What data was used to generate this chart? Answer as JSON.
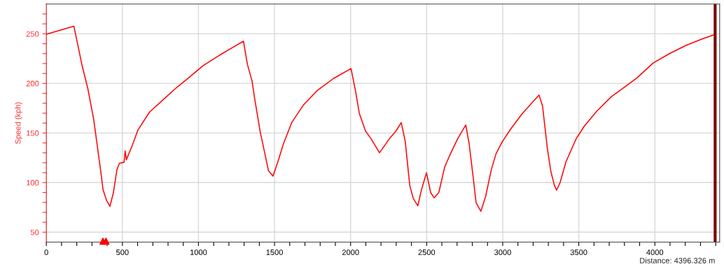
{
  "chart_data": {
    "type": "line",
    "ylabel": "Speed (kph)",
    "xlim": [
      0,
      4426
    ],
    "ylim": [
      40,
      280
    ],
    "xticks": [
      0,
      {
        "value": 100,
        "label": null
      },
      {
        "value": 200,
        "label": null
      },
      {
        "value": 300,
        "label": null
      },
      {
        "value": 400,
        "label": null
      },
      500,
      {
        "value": 600,
        "label": null
      },
      {
        "value": 700,
        "label": null
      },
      {
        "value": 800,
        "label": null
      },
      {
        "value": 900,
        "label": null
      },
      1000,
      {
        "value": 1100,
        "label": null
      },
      {
        "value": 1200,
        "label": null
      },
      {
        "value": 1300,
        "label": null
      },
      {
        "value": 1400,
        "label": null
      },
      1500,
      {
        "value": 1600,
        "label": null
      },
      {
        "value": 1700,
        "label": null
      },
      {
        "value": 1800,
        "label": null
      },
      {
        "value": 1900,
        "label": null
      },
      2000,
      {
        "value": 2100,
        "label": null
      },
      {
        "value": 2200,
        "label": null
      },
      {
        "value": 2300,
        "label": null
      },
      {
        "value": 2400,
        "label": null
      },
      2500,
      {
        "value": 2600,
        "label": null
      },
      {
        "value": 2700,
        "label": null
      },
      {
        "value": 2800,
        "label": null
      },
      {
        "value": 2900,
        "label": null
      },
      3000,
      {
        "value": 3100,
        "label": null
      },
      {
        "value": 3200,
        "label": null
      },
      {
        "value": 3300,
        "label": null
      },
      {
        "value": 3400,
        "label": null
      },
      3500,
      {
        "value": 3600,
        "label": null
      },
      {
        "value": 3700,
        "label": null
      },
      {
        "value": 3800,
        "label": null
      },
      {
        "value": 3900,
        "label": null
      },
      4000,
      {
        "value": 4100,
        "label": null
      },
      {
        "value": 4200,
        "label": null
      },
      {
        "value": 4300,
        "label": null
      },
      {
        "value": 4400,
        "label": null
      }
    ],
    "yticks": [
      50,
      {
        "value": 60,
        "label": null
      },
      {
        "value": 70,
        "label": null
      },
      {
        "value": 80,
        "label": null
      },
      {
        "value": 90,
        "label": null
      },
      100,
      {
        "value": 110,
        "label": null
      },
      {
        "value": 120,
        "label": null
      },
      {
        "value": 130,
        "label": null
      },
      {
        "value": 140,
        "label": null
      },
      150,
      {
        "value": 160,
        "label": null
      },
      {
        "value": 170,
        "label": null
      },
      {
        "value": 180,
        "label": null
      },
      {
        "value": 190,
        "label": null
      },
      200,
      {
        "value": 210,
        "label": null
      },
      {
        "value": 220,
        "label": null
      },
      {
        "value": 230,
        "label": null
      },
      {
        "value": 240,
        "label": null
      },
      250,
      {
        "value": 260,
        "label": null
      },
      {
        "value": 270,
        "label": null
      }
    ],
    "grid": true,
    "series": [
      {
        "color": "#ff0000",
        "x": [
          0,
          181,
          212,
          235,
          273,
          312,
          335,
          358,
          373,
          396,
          418,
          441,
          464,
          480,
          511,
          518,
          526,
          564,
          602,
          678,
          771,
          847,
          923,
          1031,
          1138,
          1229,
          1296,
          1322,
          1352,
          1368,
          1406,
          1445,
          1460,
          1490,
          1521,
          1559,
          1613,
          1689,
          1782,
          1888,
          2003,
          2034,
          2057,
          2098,
          2136,
          2190,
          2259,
          2298,
          2333,
          2359,
          2389,
          2412,
          2442,
          2465,
          2499,
          2526,
          2549,
          2580,
          2619,
          2649,
          2703,
          2757,
          2779,
          2803,
          2825,
          2856,
          2887,
          2926,
          2956,
          2995,
          3056,
          3131,
          3193,
          3239,
          3262,
          3293,
          3316,
          3339,
          3354,
          3377,
          3416,
          3484,
          3538,
          3622,
          3714,
          3798,
          3882,
          3989,
          4096,
          4204,
          4311,
          4396
        ],
        "values": [
          249.5,
          257.7,
          235,
          218,
          194.6,
          163,
          137,
          111,
          92.6,
          82,
          76,
          90,
          113,
          119.4,
          120.5,
          132,
          123,
          137,
          153,
          171,
          184,
          194.6,
          204,
          218,
          228.4,
          236.6,
          242.5,
          219,
          202.6,
          186,
          151,
          123,
          112,
          106.5,
          120.5,
          139.3,
          160.5,
          178,
          193,
          205,
          215,
          191,
          170,
          152,
          143.8,
          130.1,
          145,
          152,
          160.5,
          141.7,
          97,
          84,
          76.5,
          92.3,
          110,
          90,
          84.6,
          90,
          116,
          126.5,
          144,
          158,
          139.5,
          109,
          79.7,
          71,
          85.6,
          113.7,
          129,
          140.6,
          154.8,
          170,
          180.6,
          188.3,
          177,
          135,
          111.5,
          97.5,
          92.3,
          100,
          121,
          144.6,
          157.3,
          172.6,
          186.6,
          196,
          205.4,
          220.6,
          230,
          238.3,
          244.8,
          249.4
        ]
      },
      {
        "type": "scatter",
        "color": "#ff0000",
        "marker": "triangle",
        "x": [
          372,
          392
        ],
        "values": [
          41,
          41
        ]
      }
    ],
    "ref_lines": [
      {
        "axis": "x",
        "value": 4396.326,
        "label": "Distance: 4396.326 m",
        "color": "#800000"
      }
    ]
  }
}
